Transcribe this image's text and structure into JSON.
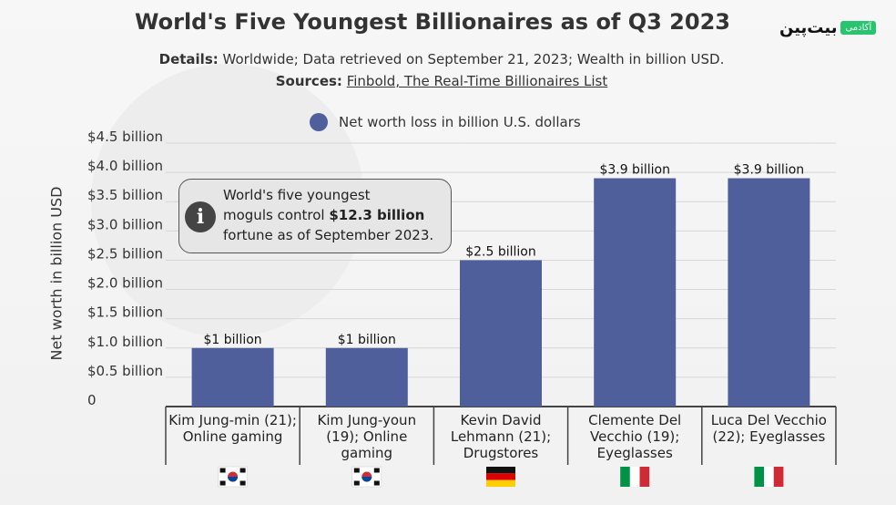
{
  "header": {
    "title": "World's Five Youngest Billionaires as of Q3 2023",
    "details_label": "Details:",
    "details_text": " Worldwide; Data retrieved on September 21, 2023; Wealth in billion USD.",
    "sources_label": "Sources:",
    "sources_text": "Finbold, The Real-Time Billionaires List"
  },
  "brand": {
    "logo": "بیت‌پین",
    "badge": "آکادمی"
  },
  "info_box": {
    "line1": "World's five youngest",
    "line2_pre": "moguls control ",
    "line2_bold": "$12.3 billion",
    "line3": "fortune as of September 2023."
  },
  "chart_data": {
    "type": "bar",
    "legend": [
      "Net worth loss in billion U.S. dollars"
    ],
    "legend_placement": "top",
    "ylabel": "Net worth in billion USD",
    "ylim": [
      0,
      4.5
    ],
    "yticks": [
      {
        "value": 0,
        "label": "0"
      },
      {
        "value": 0.5,
        "label": "$0.5 billion"
      },
      {
        "value": 1.0,
        "label": "$1.0 billion"
      },
      {
        "value": 1.5,
        "label": "$1.5 billion"
      },
      {
        "value": 2.0,
        "label": "$2.0 billion"
      },
      {
        "value": 2.5,
        "label": "$2.5 billion"
      },
      {
        "value": 3.0,
        "label": "$3.0 billion"
      },
      {
        "value": 3.5,
        "label": "$3.5 billion"
      },
      {
        "value": 4.0,
        "label": "$4.0 billion"
      },
      {
        "value": 4.5,
        "label": "$4.5 billion"
      }
    ],
    "grid": true,
    "bar_color": "#4f5f9c",
    "categories": [
      {
        "label": [
          "Kim Jung-min (21);",
          "Online gaming"
        ],
        "value": 1.0,
        "data_label": "$1 billion",
        "flag": "south-korea"
      },
      {
        "label": [
          "Kim Jung-youn",
          "(19); Online",
          "gaming"
        ],
        "value": 1.0,
        "data_label": "$1 billion",
        "flag": "south-korea"
      },
      {
        "label": [
          "Kevin David",
          "Lehmann (21);",
          "Drugstores"
        ],
        "value": 2.5,
        "data_label": "$2.5 billion",
        "flag": "germany"
      },
      {
        "label": [
          "Clemente Del",
          "Vecchio (19);",
          "Eyeglasses"
        ],
        "value": 3.9,
        "data_label": "$3.9 billion",
        "flag": "italy"
      },
      {
        "label": [
          "Luca Del Vecchio",
          "(22); Eyeglasses"
        ],
        "value": 3.9,
        "data_label": "$3.9 billion",
        "flag": "italy"
      }
    ]
  }
}
